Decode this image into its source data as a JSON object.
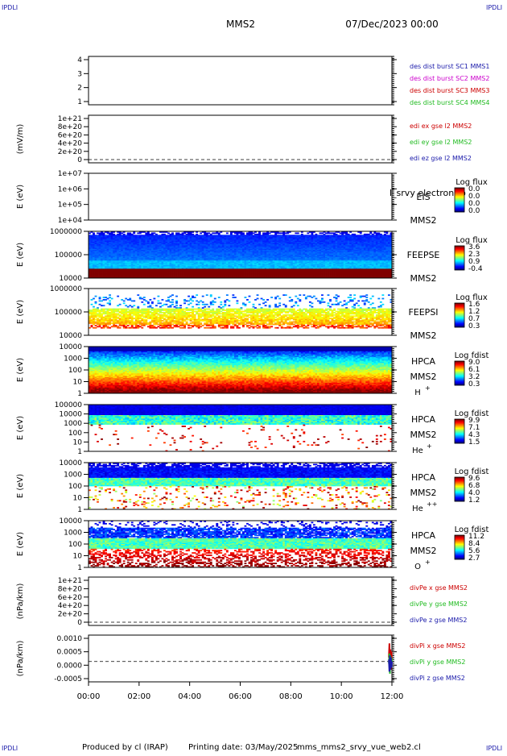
{
  "header": {
    "corner_label": "IPDLI",
    "spacecraft": "MMS2",
    "datetime": "07/Dec/2023 00:00"
  },
  "footer": {
    "produced_by": "Produced by cl (IRAP)",
    "printing_date": "Printing date: 03/May/2025",
    "script_name": "mms_mms2_srvy_vue_web2.cl"
  },
  "colors": {
    "red": "#cc0000",
    "green": "#22bb22",
    "blue": "#1a1aaa",
    "magenta": "#cc00cc"
  },
  "chart_data": [
    {
      "type": "line",
      "id": "dist-burst",
      "ylabel": "",
      "yticks": [
        "4",
        "3",
        "2",
        "1"
      ],
      "ylim": [
        0.5,
        4.5
      ],
      "legend": [
        {
          "label": "des dist burst SC1 MMS1",
          "color": "#1a1aaa"
        },
        {
          "label": "des dist burst SC2 MMS2",
          "color": "#cc00cc"
        },
        {
          "label": "des dist burst SC3 MMS3",
          "color": "#cc0000"
        },
        {
          "label": "des dist burst SC4 MMS4",
          "color": "#22bb22"
        }
      ],
      "series": []
    },
    {
      "type": "line",
      "id": "edi-efield",
      "ylabel": "(mV/m)",
      "yticks": [
        "1e+21",
        "8e+20",
        "6e+20",
        "4e+20",
        "2e+20",
        "0"
      ],
      "ylim": [
        0,
        1e+21
      ],
      "zero_line": true,
      "legend": [
        {
          "label": "edi ex gse l2 MMS2",
          "color": "#cc0000"
        },
        {
          "label": "edi ey gse l2 MMS2",
          "color": "#22bb22"
        },
        {
          "label": "edi ez gse l2 MMS2",
          "color": "#1a1aaa"
        }
      ],
      "series": []
    },
    {
      "type": "heatmap",
      "id": "eis",
      "ylabel": "E (eV)",
      "yticks": [
        "1e+07",
        "1e+06",
        "1e+05",
        "1e+04"
      ],
      "log_scale": true,
      "instrument": "EIS",
      "spacecraft": "MMS2",
      "overlay_text": "l_srvy electron to",
      "colorbar": {
        "title": "Log flux",
        "ticks": [
          "0.0",
          "0.0",
          "0.0",
          "0.0"
        ]
      },
      "pattern": "none"
    },
    {
      "type": "heatmap",
      "id": "feeps-e",
      "ylabel": "E (eV)",
      "yticks": [
        "1000000",
        "100000",
        "10000"
      ],
      "log_scale": true,
      "instrument": "FEEPSE",
      "spacecraft": "MMS2",
      "colorbar": {
        "title": "Log flux",
        "ticks": [
          "3.6",
          "2.3",
          "0.9",
          "-0.4"
        ]
      },
      "pattern": "feepse"
    },
    {
      "type": "heatmap",
      "id": "feeps-i",
      "ylabel": "E (eV)",
      "yticks": [
        "1000000",
        "100000",
        "10000"
      ],
      "log_scale": true,
      "instrument": "FEEPSI",
      "spacecraft": "MMS2",
      "colorbar": {
        "title": "Log flux",
        "ticks": [
          "1.6",
          "1.2",
          "0.7",
          "0.3"
        ]
      },
      "pattern": "feepsi"
    },
    {
      "type": "heatmap",
      "id": "hpca-h",
      "ylabel": "E (eV)",
      "yticks": [
        "10000",
        "1000",
        "100",
        "10",
        "1"
      ],
      "log_scale": true,
      "instrument": "HPCA",
      "spacecraft": "MMS2",
      "species": "H",
      "charge": "+",
      "colorbar": {
        "title": "Log fdist",
        "ticks": [
          "9.0",
          "6.1",
          "3.2",
          "0.3"
        ]
      },
      "pattern": "hplus"
    },
    {
      "type": "heatmap",
      "id": "hpca-heplus",
      "ylabel": "E (eV)",
      "yticks": [
        "100000",
        "10000",
        "1000",
        "100",
        "10",
        "1"
      ],
      "log_scale": true,
      "instrument": "HPCA",
      "spacecraft": "MMS2",
      "species": "He",
      "charge": "+",
      "colorbar": {
        "title": "Log fdist",
        "ticks": [
          "9.9",
          "7.1",
          "4.3",
          "1.5"
        ]
      },
      "pattern": "heplus"
    },
    {
      "type": "heatmap",
      "id": "hpca-heplusplus",
      "ylabel": "E (eV)",
      "yticks": [
        "10000",
        "1000",
        "100",
        "10",
        "1"
      ],
      "log_scale": true,
      "instrument": "HPCA",
      "spacecraft": "MMS2",
      "species": "He",
      "charge": "++",
      "colorbar": {
        "title": "Log fdist",
        "ticks": [
          "9.6",
          "6.8",
          "4.0",
          "1.2"
        ]
      },
      "pattern": "heplusplus"
    },
    {
      "type": "heatmap",
      "id": "hpca-oplus",
      "ylabel": "E (eV)",
      "yticks": [
        "10000",
        "1000",
        "100",
        "10",
        "1"
      ],
      "log_scale": true,
      "instrument": "HPCA",
      "spacecraft": "MMS2",
      "species": "O",
      "charge": "+",
      "colorbar": {
        "title": "Log fdist",
        "ticks": [
          "11.2",
          "8.4",
          "5.6",
          "2.7"
        ]
      },
      "pattern": "oplus"
    },
    {
      "type": "line",
      "id": "divpe",
      "ylabel": "(nPa/km)",
      "yticks": [
        "1e+21",
        "8e+20",
        "6e+20",
        "4e+20",
        "2e+20",
        "0"
      ],
      "ylim": [
        0,
        1e+21
      ],
      "zero_line": true,
      "legend": [
        {
          "label": "divPe x gse MMS2",
          "color": "#cc0000"
        },
        {
          "label": "divPe y gse MMS2",
          "color": "#22bb22"
        },
        {
          "label": "divPe z gse MMS2",
          "color": "#1a1aaa"
        }
      ],
      "series": []
    },
    {
      "type": "line",
      "id": "divpi",
      "ylabel": "(nPa/km)",
      "yticks": [
        "0.0010",
        "0.0005",
        "0.0000",
        "-0.0005"
      ],
      "ylim": [
        -0.00085,
        0.00115
      ],
      "zero_line": true,
      "legend": [
        {
          "label": "divPi x gse MMS2",
          "color": "#cc0000"
        },
        {
          "label": "divPi y gse MMS2",
          "color": "#22bb22"
        },
        {
          "label": "divPi z gse MMS2",
          "color": "#1a1aaa"
        }
      ],
      "series": [
        {
          "color": "#cc0000",
          "x": [
            11.88,
            11.9,
            11.92,
            11.94,
            11.96,
            11.98,
            12.0
          ],
          "y": [
            0.0002,
            0.0009,
            -0.0003,
            0.0006,
            -0.0004,
            0.0005,
            0.0001
          ]
        },
        {
          "color": "#22bb22",
          "x": [
            11.88,
            11.9,
            11.92,
            11.94,
            11.96,
            11.98,
            12.0
          ],
          "y": [
            -0.0001,
            0.0004,
            -0.0006,
            0.0003,
            -0.0002,
            0.0002,
            0.0
          ]
        },
        {
          "color": "#1a1aaa",
          "x": [
            11.88,
            11.9,
            11.92,
            11.94,
            11.96,
            11.98,
            12.0
          ],
          "y": [
            0.0001,
            -0.0005,
            0.0003,
            -0.0004,
            0.0002,
            -0.0003,
            0.0
          ]
        }
      ]
    }
  ],
  "time_axis": {
    "xlim_hours": [
      0,
      12
    ],
    "ticks": [
      "00:00",
      "02:00",
      "04:00",
      "06:00",
      "08:00",
      "10:00",
      "12:00"
    ]
  }
}
